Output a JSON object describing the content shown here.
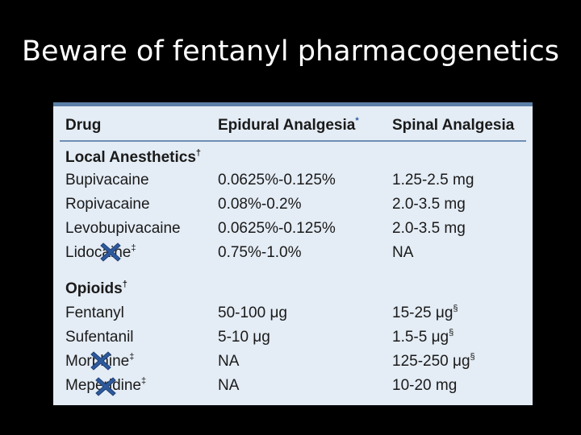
{
  "slide": {
    "title": "Beware of fentanyl pharmacogenetics"
  },
  "table": {
    "headers": {
      "drug": "Drug",
      "epidural": "Epidural Analgesia",
      "epidural_mark": "*",
      "spinal": "Spinal Analgesia"
    },
    "sections": [
      {
        "title": "Local Anesthetics",
        "title_mark": "†",
        "rows": [
          {
            "drug": "Bupivacaine",
            "drug_mark": "",
            "epidural": "0.0625%-0.125%",
            "spinal": "1.25-2.5 mg",
            "spinal_mark": ""
          },
          {
            "drug": "Ropivacaine",
            "drug_mark": "",
            "epidural": "0.08%-0.2%",
            "spinal": "2.0-3.5 mg",
            "spinal_mark": ""
          },
          {
            "drug": "Levobupivacaine",
            "drug_mark": "",
            "epidural": "0.0625%-0.125%",
            "spinal": "2.0-3.5 mg",
            "spinal_mark": ""
          },
          {
            "drug": "Lidocaine",
            "drug_mark": "‡",
            "epidural": "0.75%-1.0%",
            "spinal": "NA",
            "spinal_mark": ""
          }
        ]
      },
      {
        "title": "Opioids",
        "title_mark": "†",
        "rows": [
          {
            "drug": "Fentanyl",
            "drug_mark": "",
            "epidural": "50-100 μg",
            "spinal": "15-25 μg",
            "spinal_mark": "§"
          },
          {
            "drug": "Sufentanil",
            "drug_mark": "",
            "epidural": "5-10 μg",
            "spinal": "1.5-5 μg",
            "spinal_mark": "§"
          },
          {
            "drug": "Morphine",
            "drug_mark": "‡",
            "epidural": "NA",
            "spinal": "125-250 μg",
            "spinal_mark": "§"
          },
          {
            "drug": "Meperidine",
            "drug_mark": "‡",
            "epidural": "NA",
            "spinal": "10-20 mg",
            "spinal_mark": ""
          }
        ]
      }
    ]
  },
  "overlay": {
    "x_mark_icon": "blue-x-mark",
    "color": "#2e5a9e"
  }
}
